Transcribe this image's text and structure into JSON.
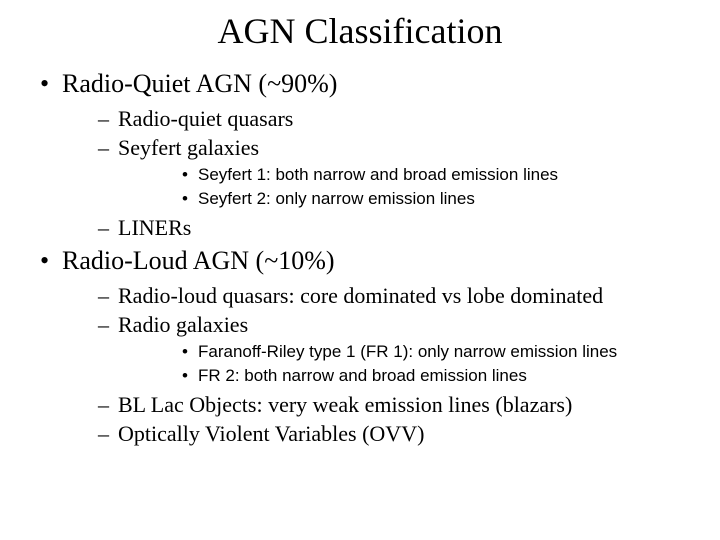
{
  "title": "AGN Classification",
  "colors": {
    "background": "#ffffff",
    "text": "#000000"
  },
  "fonts": {
    "serif": "Times New Roman",
    "sans": "Arial",
    "title_size": 36,
    "l1_size": 26,
    "l2_size": 22,
    "l3_size": 17
  },
  "bullets": {
    "l1": "•",
    "l2": "–",
    "l3": "•"
  },
  "l1": [
    {
      "text": "Radio-Quiet AGN (~90%)",
      "l2a": [
        {
          "text": "Radio-quiet quasars"
        },
        {
          "text": "Seyfert galaxies",
          "l3": [
            "Seyfert 1: both narrow and broad emission lines",
            "Seyfert 2: only narrow emission lines"
          ]
        }
      ],
      "l2b": [
        {
          "text": "LINERs"
        }
      ]
    },
    {
      "text": "Radio-Loud AGN (~10%)",
      "l2a": [
        {
          "text": "Radio-loud quasars: core dominated vs lobe dominated"
        },
        {
          "text": "Radio galaxies",
          "l3": [
            "Faranoff-Riley type 1 (FR 1): only narrow emission lines",
            "FR 2: both narrow and broad emission lines"
          ]
        }
      ],
      "l2b": [
        {
          "text": "BL Lac Objects: very weak emission lines (blazars)"
        },
        {
          "text": "Optically Violent Variables (OVV)"
        }
      ]
    }
  ]
}
